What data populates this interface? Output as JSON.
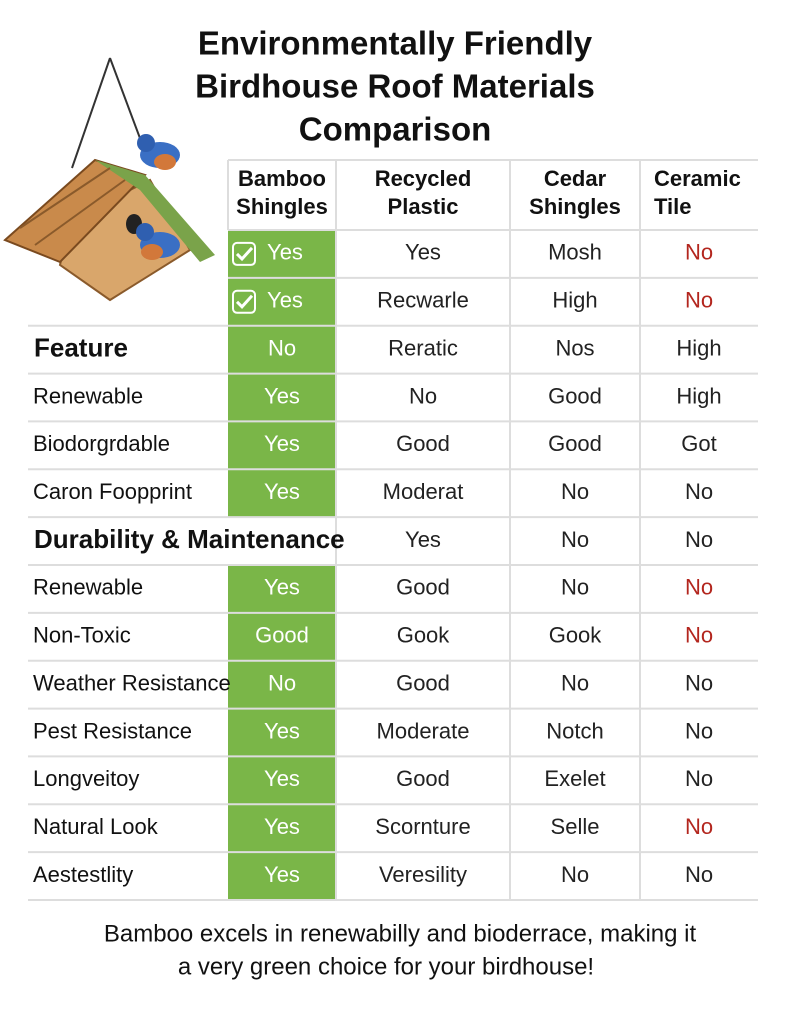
{
  "header": {
    "title_lines": [
      "Environmentally Friendly",
      "Birdhouse Roof Materials",
      "Comparison"
    ]
  },
  "table": {
    "columns": [
      [
        "Bamboo",
        "Shingles"
      ],
      [
        "Recycled",
        "Plastic"
      ],
      [
        "Cedar",
        "Shingles"
      ],
      [
        "Ceramic",
        "Tile"
      ]
    ],
    "highlight_color": "#7ab648",
    "rows": [
      {
        "label": null,
        "cells": [
          {
            "text": "Yes",
            "check": true
          },
          "Yes",
          "Mosh",
          {
            "text": "No",
            "color": "#b3261e"
          }
        ]
      },
      {
        "label": null,
        "cells": [
          {
            "text": "Yes",
            "check": true
          },
          "Recwarle",
          "High",
          {
            "text": "No",
            "color": "#b3261e"
          }
        ]
      },
      {
        "label": "Feature",
        "bold": true,
        "cells": [
          "No",
          "Reratic",
          "Nos",
          "High"
        ]
      },
      {
        "label": "Renewable",
        "cells": [
          "Yes",
          "No",
          "Good",
          "High"
        ]
      },
      {
        "label": "Biodorgrdable",
        "cells": [
          "Yes",
          "Good",
          "Good",
          "Got"
        ]
      },
      {
        "label": "Caron Foopprint",
        "cells": [
          "Yes",
          "Moderat",
          "No",
          "No"
        ]
      },
      {
        "label": "Durability & Maintenance",
        "bold": true,
        "cells": [
          null,
          "Yes",
          "No",
          "No"
        ]
      },
      {
        "label": "Renewable",
        "cells": [
          "Yes",
          "Good",
          "No",
          {
            "text": "No",
            "color": "#b3261e"
          }
        ]
      },
      {
        "label": "Non-Toxic",
        "cells": [
          "Good",
          "Gook",
          "Gook",
          {
            "text": "No",
            "color": "#b3261e"
          }
        ]
      },
      {
        "label": "Weather Resistance",
        "cells": [
          "No",
          "Good",
          "No",
          "No"
        ]
      },
      {
        "label": "Pest Resistance",
        "cells": [
          "Yes",
          "Moderate",
          "Notch",
          "No"
        ]
      },
      {
        "label": "Longveitoy",
        "cells": [
          "Yes",
          "Good",
          "Exelet",
          "No"
        ]
      },
      {
        "label": "Natural Look",
        "cells": [
          "Yes",
          "Scornture",
          "Selle",
          {
            "text": "No",
            "color": "#b3261e"
          }
        ]
      },
      {
        "label": "Aestestlity",
        "cells": [
          "Yes",
          "Veresility",
          "No",
          "No"
        ]
      }
    ]
  },
  "footer": {
    "lines": [
      "Bamboo excels in renewabilly and bioderrace, making it",
      "a very green choice for your birdhouse!"
    ]
  }
}
